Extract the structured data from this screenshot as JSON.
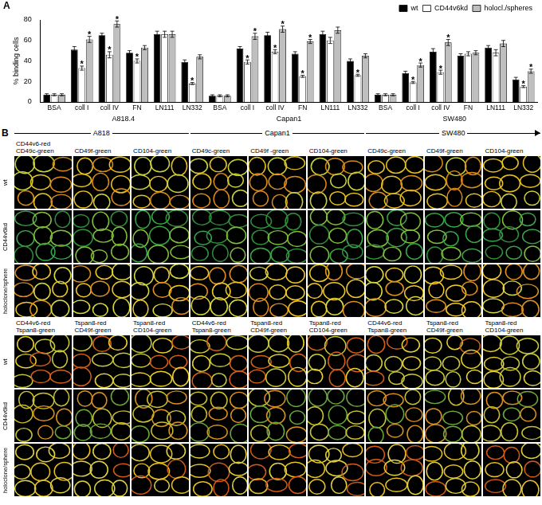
{
  "chart_data": {
    "type": "bar",
    "panel_label": "A",
    "y_label": "% binding cells",
    "categories": [
      "BSA",
      "coll I",
      "coll IV",
      "FN",
      "LN111",
      "LN332",
      "BSA",
      "coll I",
      "coll IV",
      "FN",
      "LN111",
      "LN332",
      "BSA",
      "coll I",
      "coll IV",
      "FN",
      "LN111",
      "LN332"
    ],
    "groups": [
      "A818.4",
      "Capan1",
      "SW480"
    ],
    "ylim": [
      0,
      80
    ],
    "yticks": [
      0,
      20,
      40,
      60,
      80
    ],
    "grid": false,
    "legend": "upper right",
    "series": [
      {
        "name": "wt",
        "color": "#000000",
        "values": [
          7,
          51,
          65,
          48,
          66,
          39,
          6,
          52,
          65,
          47,
          66,
          40,
          7,
          28,
          49,
          45,
          53,
          22
        ],
        "errors": [
          1,
          3,
          2,
          2,
          3,
          2,
          1,
          2,
          3,
          2,
          3,
          2,
          1,
          2,
          3,
          2,
          2,
          2
        ],
        "annotations": [
          null,
          null,
          null,
          null,
          null,
          null,
          null,
          null,
          null,
          null,
          null,
          null,
          null,
          null,
          null,
          null,
          null,
          null
        ]
      },
      {
        "name": "CD44v6kd",
        "color": "#ffffff",
        "values": [
          7,
          33,
          46,
          40,
          66,
          18,
          6,
          39,
          49,
          25,
          60,
          26,
          7,
          19,
          29,
          47,
          48,
          15
        ],
        "errors": [
          1,
          2,
          3,
          2,
          3,
          1,
          1,
          2,
          2,
          1,
          3,
          1,
          1,
          1,
          2,
          2,
          3,
          1
        ],
        "annotations": [
          null,
          "*",
          "*",
          "*",
          null,
          "*",
          null,
          "*",
          "*",
          "*",
          null,
          "*",
          null,
          "*",
          "*",
          null,
          null,
          "*"
        ]
      },
      {
        "name": "holocl./spheres",
        "color": "#bfbfbf",
        "values": [
          7,
          61,
          76,
          53,
          66,
          44,
          6,
          64,
          71,
          59,
          70,
          45,
          7,
          36,
          58,
          48,
          57,
          30
        ],
        "errors": [
          1,
          3,
          3,
          2,
          3,
          2,
          1,
          3,
          3,
          2,
          3,
          2,
          1,
          2,
          3,
          2,
          3,
          2
        ],
        "annotations": [
          null,
          "*",
          "*",
          null,
          null,
          null,
          null,
          "*",
          "*",
          "*",
          null,
          null,
          null,
          "*",
          "*",
          null,
          null,
          "*"
        ]
      }
    ]
  },
  "panel_b": {
    "label": "B",
    "cell_lines": [
      "A818",
      "Capan1",
      "SW480"
    ],
    "rows": [
      "wt",
      "CD44v6kd",
      "holoclone/sphere"
    ],
    "sections": [
      {
        "columns": [
          [
            "CD44v6-red",
            "CD49c-green"
          ],
          [
            "CD49f-green"
          ],
          [
            "CD104-green"
          ],
          [
            "CD49c-green"
          ],
          [
            "CD49f -green"
          ],
          [
            "CD104-green"
          ],
          [
            "CD49c-green"
          ],
          [
            "CD49f-green"
          ],
          [
            "CD104-green"
          ]
        ]
      },
      {
        "columns": [
          [
            "CD44v6-red",
            "Tspan8-green"
          ],
          [
            "Tspan8-red",
            "CD49f-green"
          ],
          [
            "Tspan8-red",
            "CD104-green"
          ],
          [
            "CD44v6-red",
            "Tspan8-green"
          ],
          [
            "Tspan8-red",
            "CD49f-green"
          ],
          [
            "Tspan8-red",
            "CD104-green"
          ],
          [
            "CD44v6-red",
            "Tspan8-green"
          ],
          [
            "Tspan8-red",
            "CD49f-green"
          ],
          [
            "Tspan8-red",
            "CD104-green"
          ]
        ]
      }
    ]
  }
}
